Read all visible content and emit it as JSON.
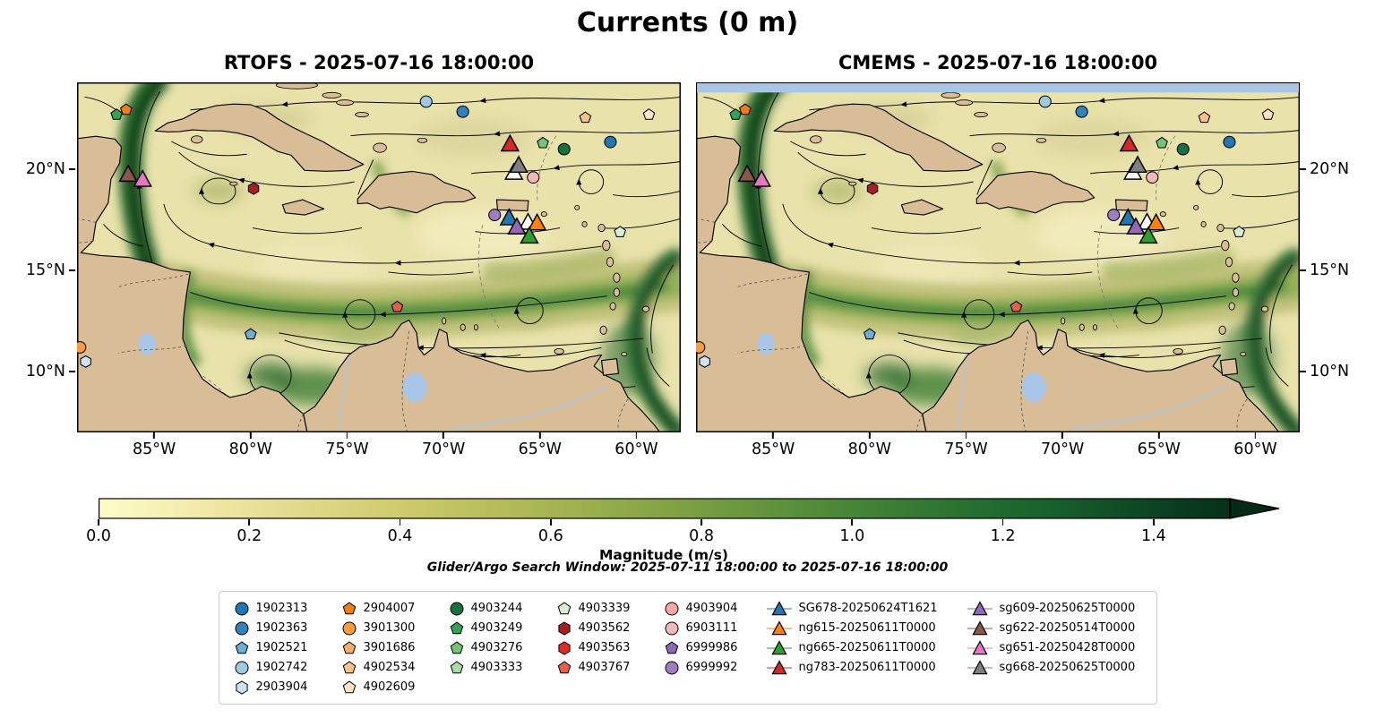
{
  "colors": {
    "land": "#d8bd96",
    "ocean": "#e9e2ab",
    "lake_river": "#a9c6e8",
    "cmems_missing_stripe": "#a9c6e4",
    "coastline": "#000000"
  },
  "chart_data": {
    "type": "streamline-map",
    "title": "Currents (0 m)",
    "field": "Ocean surface current speed with streamlines",
    "panels": [
      {
        "model": "RTOFS",
        "timestamp": "2025-07-16 18:00:00",
        "title": "RTOFS - 2025-07-16 18:00:00"
      },
      {
        "model": "CMEMS",
        "timestamp": "2025-07-16 18:00:00",
        "title": "CMEMS - 2025-07-16 18:00:00"
      }
    ],
    "extent": {
      "lon_min": -89.0,
      "lon_max": -57.7,
      "lat_min": 7.0,
      "lat_max": 24.3
    },
    "lat_ticks": [
      {
        "label": "20°N",
        "value": 20
      },
      {
        "label": "15°N",
        "value": 15
      },
      {
        "label": "10°N",
        "value": 10
      }
    ],
    "lon_ticks": [
      {
        "label": "85°W",
        "value": -85
      },
      {
        "label": "80°W",
        "value": -80
      },
      {
        "label": "75°W",
        "value": -75
      },
      {
        "label": "70°W",
        "value": -70
      },
      {
        "label": "65°W",
        "value": -65
      },
      {
        "label": "60°W",
        "value": -60
      }
    ],
    "colorbar": {
      "label": "Magnitude (m/s)",
      "tick_labels": [
        "0.0",
        "0.2",
        "0.4",
        "0.6",
        "0.8",
        "1.0",
        "1.2",
        "1.4"
      ],
      "tick_values": [
        0,
        0.2,
        0.4,
        0.6,
        0.8,
        1.0,
        1.2,
        1.4
      ],
      "vmin": 0,
      "vmax": 1.5,
      "extend": "max"
    },
    "search_window": "Glider/Argo Search Window: 2025-07-11 18:00:00 to 2025-07-16 18:00:00",
    "legend_columns": [
      [
        {
          "id": "1902313",
          "shape": "circle",
          "color": "#1f77b4"
        },
        {
          "id": "1902363",
          "shape": "circle",
          "color": "#3182bd"
        },
        {
          "id": "1902521",
          "shape": "pentagon",
          "color": "#6baed6"
        },
        {
          "id": "1902742",
          "shape": "circle",
          "color": "#9ecae1"
        },
        {
          "id": "2903904",
          "shape": "hexagon",
          "color": "#cfe1f2"
        }
      ],
      [
        {
          "id": "2904007",
          "shape": "pentagon",
          "color": "#f07e12"
        },
        {
          "id": "3901300",
          "shape": "circle",
          "color": "#fa9b3d"
        },
        {
          "id": "3901686",
          "shape": "pentagon",
          "color": "#fdae6b"
        },
        {
          "id": "4902534",
          "shape": "pentagon",
          "color": "#fdc28c"
        },
        {
          "id": "4902609",
          "shape": "pentagon",
          "color": "#fde3c3"
        }
      ],
      [
        {
          "id": "4903244",
          "shape": "circle",
          "color": "#17713c"
        },
        {
          "id": "4903249",
          "shape": "pentagon",
          "color": "#31a354"
        },
        {
          "id": "4903276",
          "shape": "pentagon",
          "color": "#74c476"
        },
        {
          "id": "4903333",
          "shape": "pentagon",
          "color": "#a9dca3"
        }
      ],
      [
        {
          "id": "4903339",
          "shape": "pentagon",
          "color": "#d7efd1"
        },
        {
          "id": "4903562",
          "shape": "hexagon",
          "color": "#a81f1f"
        },
        {
          "id": "4903563",
          "shape": "hexagon",
          "color": "#de2d26"
        },
        {
          "id": "4903767",
          "shape": "pentagon",
          "color": "#e4604d"
        }
      ],
      [
        {
          "id": "4903904",
          "shape": "circle",
          "color": "#f6a8a4"
        },
        {
          "id": "6903111",
          "shape": "circle",
          "color": "#f3b9b4"
        },
        {
          "id": "6999986",
          "shape": "pentagon",
          "color": "#8c6bb1"
        },
        {
          "id": "6999992",
          "shape": "circle",
          "color": "#9e7ec2"
        }
      ],
      [
        {
          "id": "SG678-20250624T1621",
          "shape": "triangle",
          "color": "#1f77b4"
        },
        {
          "id": "ng615-20250611T0000",
          "shape": "triangle",
          "color": "#ff7f0e"
        },
        {
          "id": "ng665-20250611T0000",
          "shape": "triangle",
          "color": "#2ca02c"
        },
        {
          "id": "ng783-20250611T0000",
          "shape": "triangle",
          "color": "#d62728"
        }
      ],
      [
        {
          "id": "sg609-20250625T0000",
          "shape": "triangle",
          "color": "#9467bd"
        },
        {
          "id": "sg622-20250514T0000",
          "shape": "triangle",
          "color": "#8c564b"
        },
        {
          "id": "sg651-20250428T0000",
          "shape": "triangle",
          "color": "#e377c2"
        },
        {
          "id": "sg668-20250625T0000",
          "shape": "triangle",
          "color": "#7f7f7f"
        }
      ]
    ],
    "map_markers": [
      {
        "id": "1902313",
        "lon": -61.35,
        "lat": 21.35
      },
      {
        "id": "1902363",
        "lon": -69.0,
        "lat": 22.85
      },
      {
        "id": "1902521",
        "lon": -80.0,
        "lat": 11.85
      },
      {
        "id": "1902742",
        "lon": -70.9,
        "lat": 23.35
      },
      {
        "id": "2903904",
        "lon": -88.55,
        "lat": 10.5
      },
      {
        "id": "2904007",
        "lon": -86.45,
        "lat": 22.95
      },
      {
        "id": "3901300",
        "lon": -88.85,
        "lat": 11.2
      },
      {
        "id": "4902534",
        "lon": -62.65,
        "lat": 22.55
      },
      {
        "id": "4902609",
        "lon": -59.35,
        "lat": 22.7
      },
      {
        "id": "4903244",
        "lon": -63.75,
        "lat": 21.0
      },
      {
        "id": "4903249",
        "lon": -86.95,
        "lat": 22.7
      },
      {
        "id": "4903276",
        "lon": -64.85,
        "lat": 21.3
      },
      {
        "id": "4903339",
        "lon": -60.85,
        "lat": 16.9
      },
      {
        "id": "4903562",
        "lon": -79.85,
        "lat": 19.05
      },
      {
        "id": "4903767",
        "lon": -72.4,
        "lat": 13.2
      },
      {
        "id": "6903111",
        "lon": -65.35,
        "lat": 19.6
      },
      {
        "id": "6999992",
        "lon": -67.35,
        "lat": 17.75
      },
      {
        "id": "white-triangle-1",
        "shape": "triangle",
        "color": "#ffffff",
        "lon": -66.35,
        "lat": 19.85
      },
      {
        "id": "white-triangle-2",
        "shape": "triangle",
        "color": "#ffffff",
        "lon": -65.62,
        "lat": 17.38
      },
      {
        "id": "SG678-20250624T1621",
        "lon": -66.6,
        "lat": 17.6
      },
      {
        "id": "ng615-20250611T0000",
        "lon": -65.15,
        "lat": 17.35
      },
      {
        "id": "ng665-20250611T0000",
        "lon": -65.55,
        "lat": 16.7
      },
      {
        "id": "ng783-20250611T0000",
        "lon": -66.55,
        "lat": 21.25
      },
      {
        "id": "sg609-20250625T0000",
        "lon": -66.2,
        "lat": 17.15
      },
      {
        "id": "sg622-20250514T0000",
        "lon": -86.35,
        "lat": 19.75
      },
      {
        "id": "sg651-20250428T0000",
        "lon": -85.6,
        "lat": 19.5
      },
      {
        "id": "sg668-20250625T0000",
        "lon": -66.1,
        "lat": 20.2
      }
    ]
  }
}
